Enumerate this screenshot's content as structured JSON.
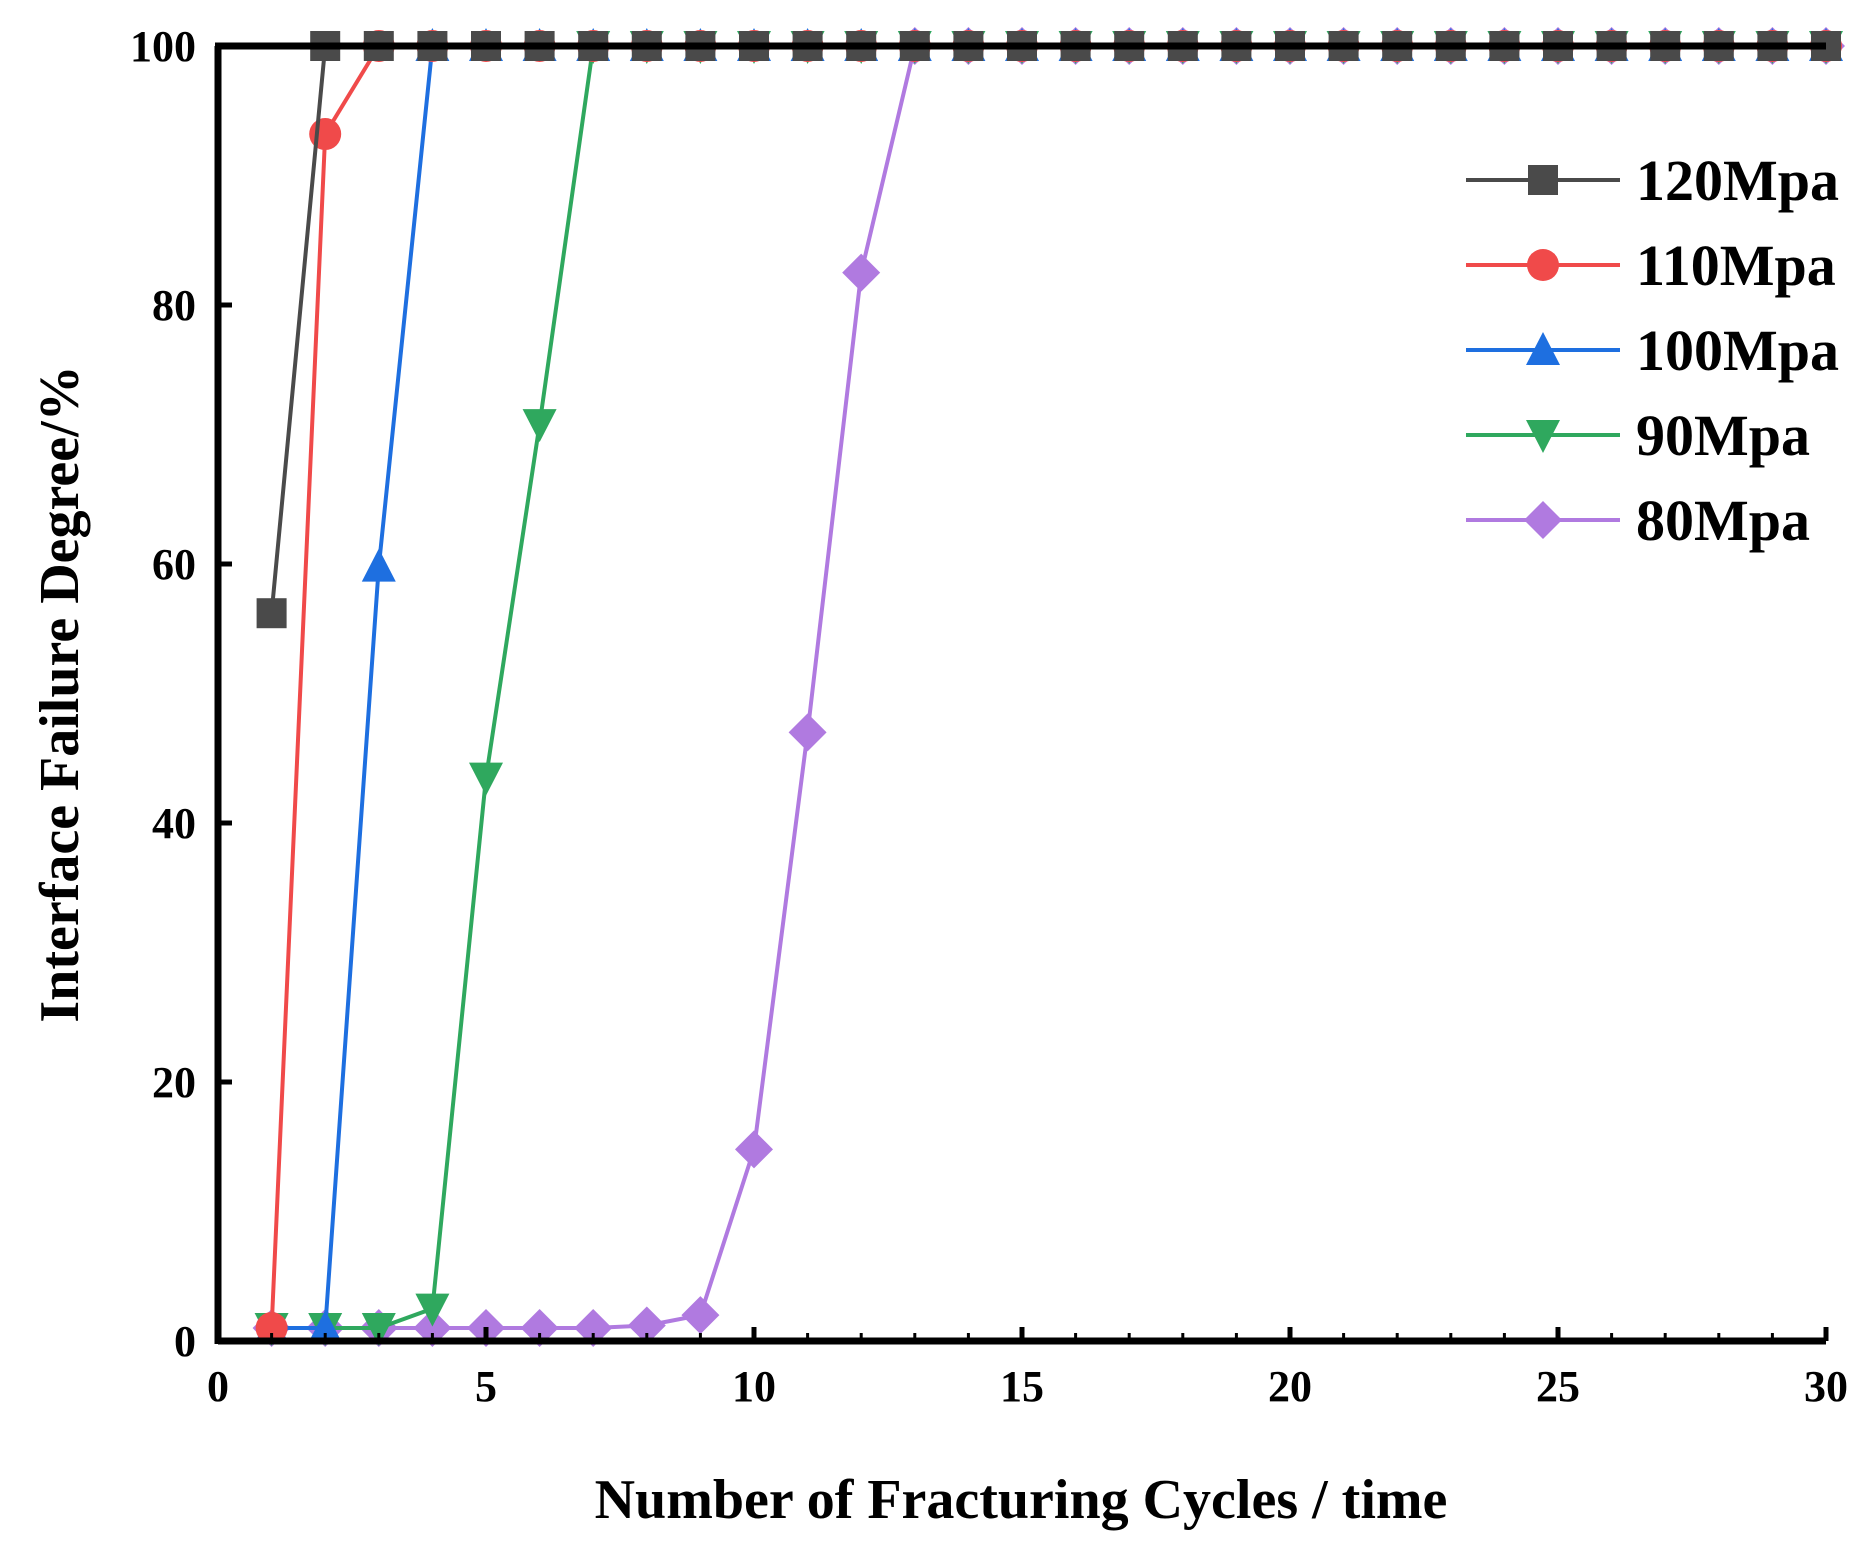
{
  "chart_data": {
    "type": "line",
    "title": "",
    "xlabel": "Number of Fracturing Cycles / time",
    "ylabel": "Interface Failure Degree/%",
    "xlim": [
      0,
      30
    ],
    "ylim": [
      0,
      100
    ],
    "xticks": [
      "0",
      "5",
      "10",
      "15",
      "20",
      "25",
      "30"
    ],
    "xtick_values": [
      0,
      5,
      10,
      15,
      20,
      25,
      30
    ],
    "yticks": [
      "0",
      "20",
      "40",
      "60",
      "80",
      "100"
    ],
    "ytick_values": [
      0,
      20,
      40,
      60,
      80,
      100
    ],
    "grid": false,
    "legend_position": "top-right",
    "x": [
      1,
      2,
      3,
      4,
      5,
      6,
      7,
      8,
      9,
      10,
      11,
      12,
      13,
      14,
      15,
      16,
      17,
      18,
      19,
      20,
      21,
      22,
      23,
      24,
      25,
      26,
      27,
      28,
      29,
      30
    ],
    "series": [
      {
        "name": "120Mpa",
        "color": "#4a4a4a",
        "marker": "square",
        "values": [
          56.2,
          100,
          100,
          100,
          100,
          100,
          100,
          100,
          100,
          100,
          100,
          100,
          100,
          100,
          100,
          100,
          100,
          100,
          100,
          100,
          100,
          100,
          100,
          100,
          100,
          100,
          100,
          100,
          100,
          100
        ]
      },
      {
        "name": "110Mpa",
        "color": "#f04a4a",
        "marker": "circle",
        "values": [
          1.0,
          93.2,
          100,
          100,
          100,
          100,
          100,
          100,
          100,
          100,
          100,
          100,
          100,
          100,
          100,
          100,
          100,
          100,
          100,
          100,
          100,
          100,
          100,
          100,
          100,
          100,
          100,
          100,
          100,
          100
        ]
      },
      {
        "name": "100Mpa",
        "color": "#1e6fe0",
        "marker": "triangle-up",
        "values": [
          1.0,
          1.0,
          59.8,
          100,
          100,
          100,
          100,
          100,
          100,
          100,
          100,
          100,
          100,
          100,
          100,
          100,
          100,
          100,
          100,
          100,
          100,
          100,
          100,
          100,
          100,
          100,
          100,
          100,
          100,
          100
        ]
      },
      {
        "name": "90Mpa",
        "color": "#2fa85e",
        "marker": "triangle-down",
        "values": [
          1.0,
          1.0,
          1.0,
          2.5,
          43.5,
          70.8,
          100,
          100,
          100,
          100,
          100,
          100,
          100,
          100,
          100,
          100,
          100,
          100,
          100,
          100,
          100,
          100,
          100,
          100,
          100,
          100,
          100,
          100,
          100,
          100
        ]
      },
      {
        "name": "80Mpa",
        "color": "#b07ae0",
        "marker": "diamond",
        "values": [
          1.0,
          1.0,
          1.0,
          1.0,
          1.0,
          1.0,
          1.0,
          1.2,
          2.0,
          14.8,
          47.0,
          82.5,
          100,
          100,
          100,
          100,
          100,
          100,
          100,
          100,
          100,
          100,
          100,
          100,
          100,
          100,
          100,
          100,
          100,
          100
        ]
      }
    ]
  }
}
